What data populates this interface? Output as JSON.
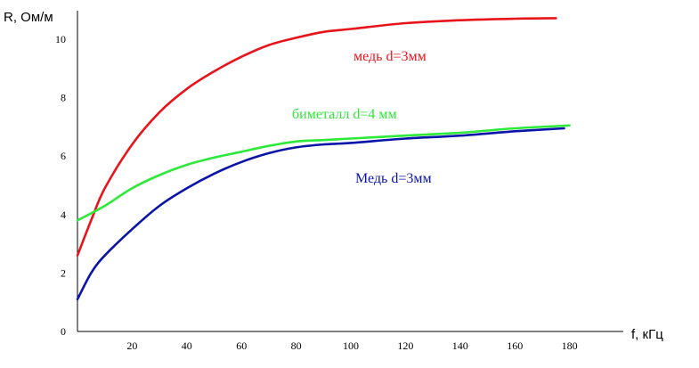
{
  "chart_data": {
    "type": "line",
    "title": "",
    "xlabel": "f, кГц",
    "ylabel": "R, Ом/м",
    "xlim": [
      0,
      190
    ],
    "ylim": [
      0,
      11
    ],
    "x_ticks": [
      20,
      40,
      60,
      80,
      100,
      120,
      140,
      160,
      180
    ],
    "y_ticks": [
      0,
      2,
      4,
      6,
      8,
      10
    ],
    "grid": false,
    "series": [
      {
        "name": "медь d=3мм",
        "color": "#e8141c",
        "x": [
          0,
          5,
          10,
          20,
          30,
          40,
          50,
          60,
          70,
          80,
          90,
          100,
          120,
          140,
          160,
          175
        ],
        "y": [
          2.6,
          3.8,
          4.9,
          6.4,
          7.5,
          8.3,
          8.9,
          9.4,
          9.8,
          10.05,
          10.25,
          10.35,
          10.55,
          10.65,
          10.7,
          10.72
        ]
      },
      {
        "name": "биметалл  d=4 мм",
        "color": "#2ee83a",
        "x": [
          0,
          10,
          20,
          30,
          40,
          50,
          60,
          70,
          80,
          90,
          100,
          120,
          140,
          160,
          180
        ],
        "y": [
          3.8,
          4.3,
          4.9,
          5.35,
          5.7,
          5.95,
          6.15,
          6.35,
          6.5,
          6.55,
          6.6,
          6.7,
          6.8,
          6.95,
          7.05
        ]
      },
      {
        "name": "Медь d=3мм",
        "color": "#0a14a8",
        "x": [
          0,
          5,
          10,
          20,
          30,
          40,
          50,
          60,
          70,
          80,
          90,
          100,
          120,
          140,
          160,
          178
        ],
        "y": [
          1.1,
          2.0,
          2.6,
          3.5,
          4.3,
          4.9,
          5.4,
          5.8,
          6.1,
          6.3,
          6.4,
          6.45,
          6.6,
          6.7,
          6.85,
          6.95
        ]
      }
    ]
  }
}
